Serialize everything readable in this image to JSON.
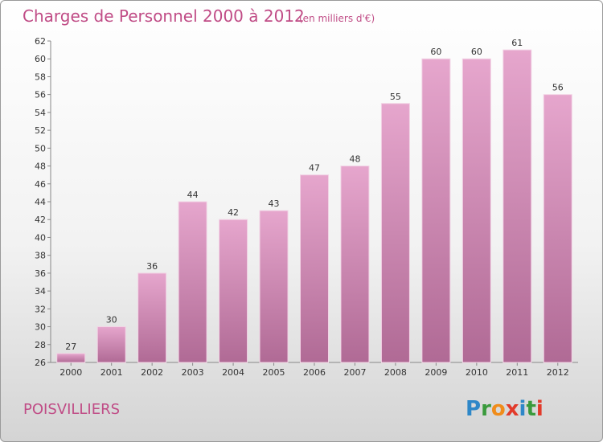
{
  "title": "Charges de Personnel 2000 à 2012",
  "subtitle": "(en milliers d'€)",
  "commune": "POISVILLIERS",
  "logo": {
    "letters": [
      "P",
      "r",
      "o",
      "x",
      "i",
      "t",
      "i"
    ],
    "colors": [
      "#2e87c8",
      "#3a9a3c",
      "#f08c1a",
      "#e23a2a",
      "#2e87c8",
      "#3a9a3c",
      "#e23a2a"
    ]
  },
  "colors": {
    "bar": "#c77aa8",
    "bar_light": "#e6a6cd",
    "title": "#c04c86"
  },
  "chart_data": {
    "type": "bar",
    "title": "Charges de Personnel 2000 à 2012",
    "subtitle": "(en milliers d'€)",
    "categories": [
      "2000",
      "2001",
      "2002",
      "2003",
      "2004",
      "2005",
      "2006",
      "2007",
      "2008",
      "2009",
      "2010",
      "2011",
      "2012"
    ],
    "values": [
      27,
      30,
      36,
      44,
      42,
      43,
      47,
      48,
      55,
      60,
      60,
      61,
      56
    ],
    "ylim": [
      26,
      62
    ],
    "yticks": [
      26,
      28,
      30,
      32,
      34,
      36,
      38,
      40,
      42,
      44,
      46,
      48,
      50,
      52,
      54,
      56,
      58,
      60,
      62
    ],
    "grid": false
  }
}
